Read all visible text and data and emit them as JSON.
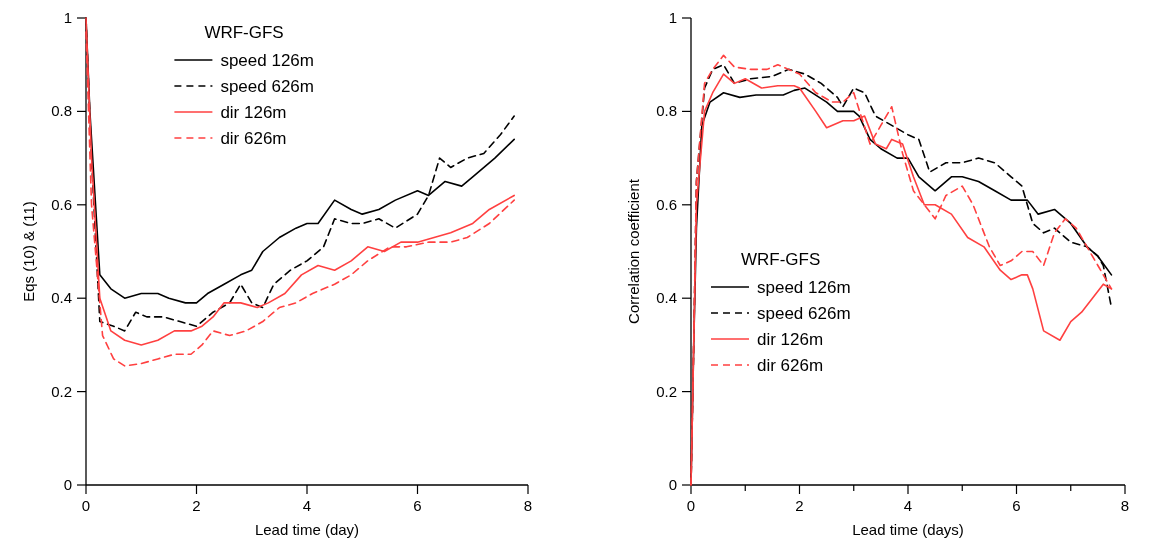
{
  "chart_data": [
    {
      "type": "line",
      "xlabel": "Lead time (day)",
      "ylabel": "Eqs (10) & (11)",
      "legend_title": "WRF-GFS",
      "legend": "top",
      "grid": false,
      "xlim": [
        0,
        8
      ],
      "ylim": [
        0,
        1
      ],
      "xticks": [
        0,
        2,
        4,
        6,
        8
      ],
      "yticks": [
        0,
        0.2,
        0.4,
        0.6,
        0.8,
        1
      ],
      "series": [
        {
          "name": "speed 126m",
          "color": "#000000",
          "line_style": "solid",
          "x": [
            0,
            0.07,
            0.25,
            0.45,
            0.7,
            1.0,
            1.3,
            1.5,
            1.8,
            2.0,
            2.2,
            2.5,
            2.8,
            3.0,
            3.2,
            3.5,
            3.8,
            4.0,
            4.2,
            4.5,
            4.8,
            5.0,
            5.3,
            5.6,
            6.0,
            6.2,
            6.5,
            6.8,
            7.0,
            7.4,
            7.75
          ],
          "values": [
            1,
            0.8,
            0.45,
            0.42,
            0.4,
            0.41,
            0.41,
            0.4,
            0.39,
            0.39,
            0.41,
            0.43,
            0.45,
            0.46,
            0.5,
            0.53,
            0.55,
            0.56,
            0.56,
            0.61,
            0.59,
            0.58,
            0.59,
            0.61,
            0.63,
            0.62,
            0.65,
            0.64,
            0.66,
            0.7,
            0.74
          ]
        },
        {
          "name": "speed 626m",
          "color": "#000000",
          "line_style": "dashed",
          "x": [
            0,
            0.1,
            0.25,
            0.5,
            0.7,
            0.9,
            1.1,
            1.4,
            1.7,
            2.0,
            2.3,
            2.6,
            2.8,
            3.0,
            3.2,
            3.4,
            3.7,
            4.0,
            4.3,
            4.5,
            4.8,
            5.0,
            5.3,
            5.6,
            6.0,
            6.2,
            6.4,
            6.6,
            6.9,
            7.2,
            7.5,
            7.75
          ],
          "values": [
            1,
            0.7,
            0.35,
            0.34,
            0.33,
            0.37,
            0.36,
            0.36,
            0.35,
            0.34,
            0.37,
            0.39,
            0.43,
            0.39,
            0.38,
            0.43,
            0.46,
            0.48,
            0.51,
            0.57,
            0.56,
            0.56,
            0.57,
            0.55,
            0.58,
            0.62,
            0.7,
            0.68,
            0.7,
            0.71,
            0.75,
            0.79
          ]
        },
        {
          "name": "dir 126m",
          "color": "#ff4040",
          "line_style": "solid",
          "x": [
            0,
            0.1,
            0.25,
            0.45,
            0.7,
            1.0,
            1.3,
            1.6,
            1.9,
            2.1,
            2.3,
            2.5,
            2.8,
            3.1,
            3.3,
            3.6,
            3.9,
            4.2,
            4.5,
            4.8,
            5.1,
            5.4,
            5.7,
            6.0,
            6.3,
            6.6,
            7.0,
            7.3,
            7.75
          ],
          "values": [
            1,
            0.7,
            0.4,
            0.33,
            0.31,
            0.3,
            0.31,
            0.33,
            0.33,
            0.34,
            0.36,
            0.39,
            0.39,
            0.38,
            0.39,
            0.41,
            0.45,
            0.47,
            0.46,
            0.48,
            0.51,
            0.5,
            0.52,
            0.52,
            0.53,
            0.54,
            0.56,
            0.59,
            0.62
          ]
        },
        {
          "name": "dir 626m",
          "color": "#ff4040",
          "line_style": "dashed",
          "x": [
            0,
            0.1,
            0.3,
            0.5,
            0.7,
            1.0,
            1.3,
            1.6,
            1.9,
            2.1,
            2.3,
            2.6,
            2.9,
            3.2,
            3.5,
            3.8,
            4.1,
            4.5,
            4.8,
            5.1,
            5.5,
            5.8,
            6.2,
            6.6,
            6.9,
            7.3,
            7.75
          ],
          "values": [
            0.97,
            0.6,
            0.32,
            0.27,
            0.255,
            0.26,
            0.27,
            0.28,
            0.28,
            0.3,
            0.33,
            0.32,
            0.33,
            0.35,
            0.38,
            0.39,
            0.41,
            0.43,
            0.45,
            0.48,
            0.51,
            0.51,
            0.52,
            0.52,
            0.53,
            0.56,
            0.61
          ]
        }
      ]
    },
    {
      "type": "line",
      "xlabel": "Lead time (days)",
      "ylabel": "Correlation coefficient",
      "legend_title": "WRF-GFS",
      "legend": "bottom left",
      "grid": false,
      "xlim": [
        0,
        8
      ],
      "ylim": [
        0,
        1
      ],
      "xticks": [
        0,
        {
          "value": 1,
          "label": null
        },
        2,
        {
          "value": 3,
          "label": null
        },
        4,
        {
          "value": 5,
          "label": null
        },
        6,
        {
          "value": 7,
          "label": null
        },
        8
      ],
      "yticks": [
        0,
        0.2,
        0.4,
        0.6,
        0.8,
        1
      ],
      "series": [
        {
          "name": "speed 126m",
          "color": "#000000",
          "line_style": "solid",
          "x": [
            0,
            0.05,
            0.1,
            0.2,
            0.35,
            0.6,
            0.9,
            1.2,
            1.5,
            1.7,
            1.9,
            2.1,
            2.5,
            2.7,
            3.0,
            3.1,
            3.3,
            3.5,
            3.8,
            4.0,
            4.2,
            4.5,
            4.8,
            5.0,
            5.3,
            5.6,
            5.9,
            6.1,
            6.2,
            6.4,
            6.7,
            7.0,
            7.3,
            7.5,
            7.75
          ],
          "values": [
            0,
            0.3,
            0.55,
            0.77,
            0.82,
            0.84,
            0.83,
            0.835,
            0.835,
            0.835,
            0.845,
            0.85,
            0.82,
            0.8,
            0.8,
            0.79,
            0.74,
            0.72,
            0.7,
            0.7,
            0.66,
            0.63,
            0.66,
            0.66,
            0.65,
            0.63,
            0.61,
            0.61,
            0.61,
            0.58,
            0.59,
            0.56,
            0.51,
            0.49,
            0.45
          ]
        },
        {
          "name": "speed 626m",
          "color": "#000000",
          "line_style": "dashed",
          "x": [
            0,
            0.05,
            0.1,
            0.25,
            0.4,
            0.6,
            0.8,
            1.1,
            1.5,
            1.8,
            2.1,
            2.4,
            2.7,
            2.8,
            3.0,
            3.2,
            3.4,
            3.7,
            4.0,
            4.2,
            4.4,
            4.7,
            5.0,
            5.3,
            5.6,
            5.9,
            6.1,
            6.3,
            6.5,
            6.7,
            7.0,
            7.3,
            7.5,
            7.6,
            7.75
          ],
          "values": [
            0,
            0.3,
            0.65,
            0.85,
            0.89,
            0.9,
            0.86,
            0.87,
            0.875,
            0.89,
            0.88,
            0.86,
            0.83,
            0.81,
            0.85,
            0.84,
            0.79,
            0.77,
            0.75,
            0.74,
            0.67,
            0.69,
            0.69,
            0.7,
            0.69,
            0.66,
            0.64,
            0.56,
            0.54,
            0.55,
            0.52,
            0.51,
            0.49,
            0.47,
            0.38
          ]
        },
        {
          "name": "dir 126m",
          "color": "#ff4040",
          "line_style": "solid",
          "x": [
            0,
            0.05,
            0.1,
            0.25,
            0.4,
            0.6,
            0.8,
            1.0,
            1.3,
            1.6,
            1.9,
            2.0,
            2.3,
            2.5,
            2.8,
            3.0,
            3.2,
            3.4,
            3.6,
            3.7,
            3.9,
            4.1,
            4.3,
            4.5,
            4.8,
            5.1,
            5.4,
            5.7,
            5.9,
            6.1,
            6.2,
            6.3,
            6.5,
            6.8,
            7.0,
            7.2,
            7.4,
            7.6,
            7.75
          ],
          "values": [
            0,
            0.3,
            0.6,
            0.8,
            0.84,
            0.88,
            0.86,
            0.87,
            0.85,
            0.855,
            0.855,
            0.85,
            0.8,
            0.765,
            0.78,
            0.78,
            0.79,
            0.73,
            0.72,
            0.74,
            0.73,
            0.66,
            0.6,
            0.6,
            0.58,
            0.53,
            0.51,
            0.46,
            0.44,
            0.45,
            0.45,
            0.42,
            0.33,
            0.31,
            0.35,
            0.37,
            0.4,
            0.43,
            0.42
          ]
        },
        {
          "name": "dir 626m",
          "color": "#ff4040",
          "line_style": "dashed",
          "x": [
            0,
            0.05,
            0.1,
            0.25,
            0.4,
            0.6,
            0.8,
            1.1,
            1.4,
            1.6,
            1.8,
            2.0,
            2.3,
            2.6,
            2.8,
            3.0,
            3.3,
            3.5,
            3.7,
            3.9,
            4.1,
            4.3,
            4.5,
            4.7,
            5.0,
            5.2,
            5.5,
            5.7,
            5.9,
            6.1,
            6.3,
            6.5,
            6.7,
            6.9,
            7.1,
            7.3,
            7.5,
            7.75
          ],
          "values": [
            0,
            0.3,
            0.65,
            0.86,
            0.89,
            0.92,
            0.895,
            0.89,
            0.89,
            0.9,
            0.89,
            0.88,
            0.84,
            0.82,
            0.82,
            0.84,
            0.73,
            0.77,
            0.81,
            0.71,
            0.63,
            0.6,
            0.57,
            0.62,
            0.64,
            0.6,
            0.51,
            0.47,
            0.48,
            0.5,
            0.5,
            0.47,
            0.54,
            0.57,
            0.55,
            0.51,
            0.47,
            0.42
          ]
        }
      ]
    }
  ]
}
